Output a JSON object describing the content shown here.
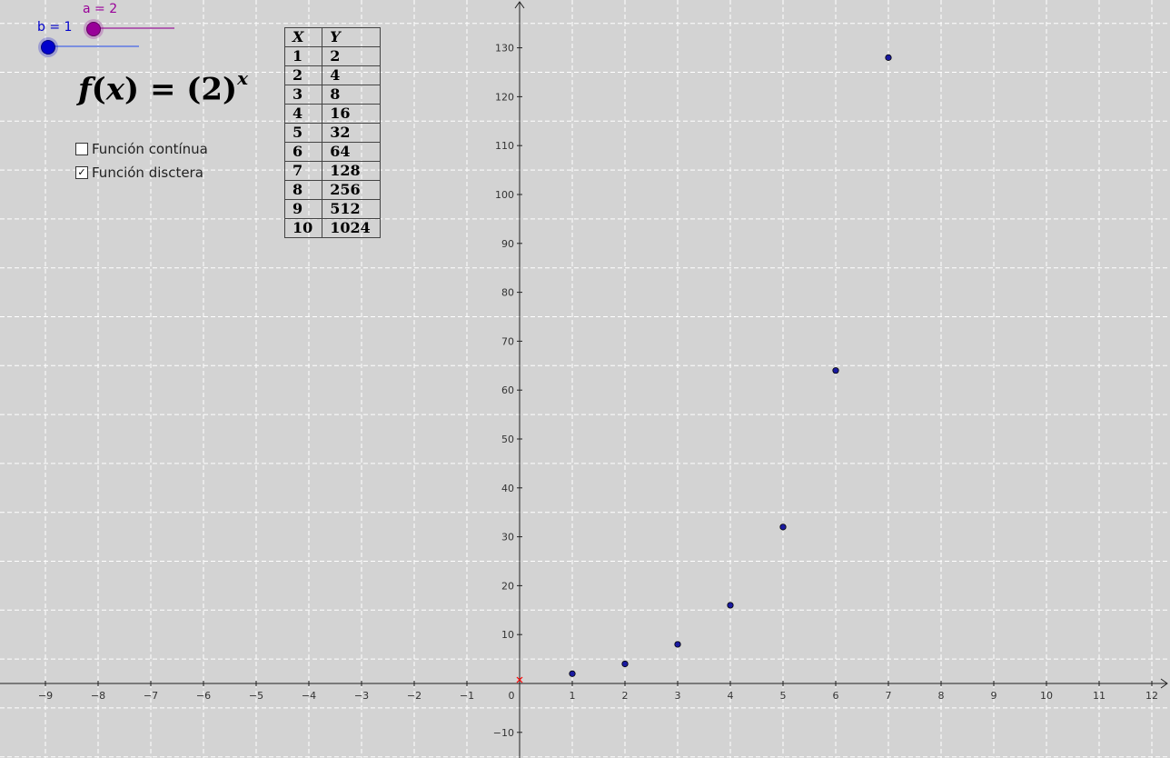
{
  "sliders": {
    "a": {
      "label": "a = 2",
      "value": 2,
      "color": "#990099"
    },
    "b": {
      "label": "b = 1",
      "value": 1,
      "color": "#0000cc"
    }
  },
  "formula": {
    "lhs_f": "f",
    "lhs_var": "x",
    "base": "2",
    "exponent": "x"
  },
  "checkboxes": [
    {
      "label": "Función contínua",
      "checked": false
    },
    {
      "label": "Función disctera",
      "checked": true
    }
  ],
  "table": {
    "headers": [
      "X",
      "Y"
    ],
    "rows": [
      [
        "1",
        "2"
      ],
      [
        "2",
        "4"
      ],
      [
        "3",
        "8"
      ],
      [
        "4",
        "16"
      ],
      [
        "5",
        "32"
      ],
      [
        "6",
        "64"
      ],
      [
        "7",
        "128"
      ],
      [
        "8",
        "256"
      ],
      [
        "9",
        "512"
      ],
      [
        "10",
        "1024"
      ]
    ]
  },
  "axes": {
    "x_ticks": [
      "−9",
      "−8",
      "−7",
      "−6",
      "−5",
      "−4",
      "−3",
      "−2",
      "−1",
      "0",
      "1",
      "2",
      "3",
      "4",
      "5",
      "6",
      "7",
      "8",
      "9",
      "10",
      "11",
      "12"
    ],
    "y_ticks": [
      "−10",
      "10",
      "20",
      "30",
      "40",
      "50",
      "60",
      "70",
      "80",
      "90",
      "100",
      "110",
      "120",
      "130"
    ],
    "x_range": [
      -9.8,
      12.3
    ],
    "y_range": [
      -14,
      139
    ]
  },
  "points": [
    {
      "x": 1,
      "y": 2
    },
    {
      "x": 2,
      "y": 4
    },
    {
      "x": 3,
      "y": 8
    },
    {
      "x": 4,
      "y": 16
    },
    {
      "x": 5,
      "y": 32
    },
    {
      "x": 6,
      "y": 64
    },
    {
      "x": 7,
      "y": 128
    }
  ],
  "colors": {
    "point": "#1a1aa0",
    "origin_marker": "#ff0000",
    "grid": "#ffffff",
    "background": "#d3d3d3"
  }
}
